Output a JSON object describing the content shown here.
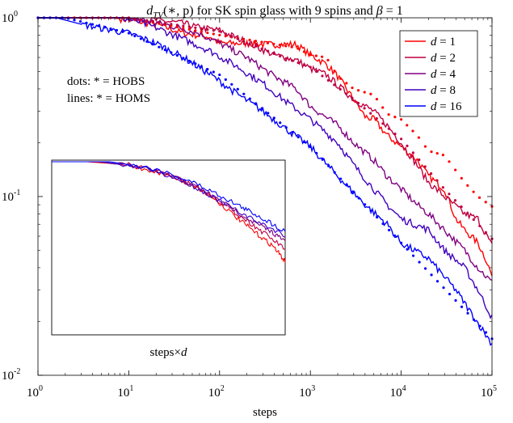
{
  "chart_data": {
    "type": "line",
    "title": "d_TV(*,p) for SK spin glass with 9 spins and β = 1",
    "title_parts": {
      "d": "d",
      "sub": "TV",
      "args": "(∗, p)",
      "rest": " for SK spin glass with 9 spins and ",
      "beta": "β",
      "eq": " = 1"
    },
    "xlabel": "steps",
    "ylabel": "",
    "xscale": "log",
    "yscale": "log",
    "xlim": [
      1,
      100000
    ],
    "ylim": [
      0.01,
      1
    ],
    "x_ticks": [
      {
        "base": "10",
        "exp": "0"
      },
      {
        "base": "10",
        "exp": "1"
      },
      {
        "base": "10",
        "exp": "2"
      },
      {
        "base": "10",
        "exp": "3"
      },
      {
        "base": "10",
        "exp": "4"
      },
      {
        "base": "10",
        "exp": "5"
      }
    ],
    "y_ticks": [
      {
        "base": "10",
        "exp": "-2"
      },
      {
        "base": "10",
        "exp": "-1"
      },
      {
        "base": "10",
        "exp": "0"
      }
    ],
    "annotation_lines": [
      "dots: * = HOBS",
      "lines: * = HOMS"
    ],
    "legend_position": "top-right",
    "legend": [
      {
        "label": "d = 1",
        "var": "d",
        "eq": " = 1",
        "color": "#ff0000"
      },
      {
        "label": "d = 2",
        "var": "d",
        "eq": " = 2",
        "color": "#bf0040"
      },
      {
        "label": "d = 4",
        "var": "d",
        "eq": " = 4",
        "color": "#800080"
      },
      {
        "label": "d = 8",
        "var": "d",
        "eq": " = 8",
        "color": "#4000bf"
      },
      {
        "label": "d = 16",
        "var": "d",
        "eq": " = 16",
        "color": "#0000ff"
      }
    ],
    "series": [
      {
        "name": "d = 1",
        "style": "line",
        "color": "#ff0000",
        "points": [
          [
            1,
            1
          ],
          [
            7,
            1
          ],
          [
            20,
            0.92
          ],
          [
            40,
            0.82
          ],
          [
            80,
            0.78
          ],
          [
            100,
            0.72
          ],
          [
            200,
            0.72
          ],
          [
            300,
            0.71
          ],
          [
            500,
            0.71
          ],
          [
            700,
            0.71
          ],
          [
            1000,
            0.62
          ],
          [
            1500,
            0.55
          ],
          [
            2000,
            0.47
          ],
          [
            3000,
            0.35
          ],
          [
            4000,
            0.28
          ],
          [
            5000,
            0.27
          ],
          [
            7000,
            0.22
          ],
          [
            10000,
            0.19
          ],
          [
            15000,
            0.16
          ],
          [
            20000,
            0.13
          ],
          [
            30000,
            0.11
          ],
          [
            40000,
            0.075
          ],
          [
            50000,
            0.065
          ],
          [
            70000,
            0.055
          ],
          [
            85000,
            0.045
          ],
          [
            100000,
            0.036
          ]
        ]
      },
      {
        "name": "d = 2",
        "style": "line",
        "color": "#bf0040",
        "points": [
          [
            1,
            1
          ],
          [
            10,
            1
          ],
          [
            20,
            0.97
          ],
          [
            40,
            0.93
          ],
          [
            60,
            0.88
          ],
          [
            100,
            0.85
          ],
          [
            200,
            0.73
          ],
          [
            400,
            0.62
          ],
          [
            700,
            0.58
          ],
          [
            1000,
            0.52
          ],
          [
            1500,
            0.48
          ],
          [
            2000,
            0.42
          ],
          [
            3000,
            0.35
          ],
          [
            5000,
            0.3
          ],
          [
            7000,
            0.25
          ],
          [
            10000,
            0.2
          ],
          [
            15000,
            0.15
          ],
          [
            20000,
            0.12
          ],
          [
            30000,
            0.1
          ],
          [
            50000,
            0.08
          ],
          [
            70000,
            0.075
          ],
          [
            100000,
            0.053
          ]
        ]
      },
      {
        "name": "d = 4",
        "style": "line",
        "color": "#800080",
        "points": [
          [
            1,
            1
          ],
          [
            10,
            1
          ],
          [
            15,
            0.97
          ],
          [
            30,
            0.9
          ],
          [
            60,
            0.82
          ],
          [
            100,
            0.72
          ],
          [
            200,
            0.6
          ],
          [
            400,
            0.47
          ],
          [
            700,
            0.4
          ],
          [
            1000,
            0.32
          ],
          [
            2000,
            0.25
          ],
          [
            3000,
            0.2
          ],
          [
            5000,
            0.16
          ],
          [
            7000,
            0.13
          ],
          [
            10000,
            0.11
          ],
          [
            15000,
            0.09
          ],
          [
            20000,
            0.08
          ],
          [
            30000,
            0.065
          ],
          [
            50000,
            0.05
          ],
          [
            70000,
            0.04
          ],
          [
            100000,
            0.033
          ]
        ]
      },
      {
        "name": "d = 8",
        "style": "line",
        "color": "#4000bf",
        "points": [
          [
            1,
            1
          ],
          [
            8,
            1
          ],
          [
            12,
            0.96
          ],
          [
            20,
            0.88
          ],
          [
            40,
            0.76
          ],
          [
            80,
            0.65
          ],
          [
            150,
            0.54
          ],
          [
            300,
            0.43
          ],
          [
            500,
            0.35
          ],
          [
            1000,
            0.27
          ],
          [
            2000,
            0.2
          ],
          [
            3000,
            0.15
          ],
          [
            5000,
            0.11
          ],
          [
            7000,
            0.09
          ],
          [
            10000,
            0.075
          ],
          [
            20000,
            0.065
          ],
          [
            30000,
            0.05
          ],
          [
            50000,
            0.04
          ],
          [
            70000,
            0.03
          ],
          [
            100000,
            0.021
          ]
        ]
      },
      {
        "name": "d = 16",
        "style": "line",
        "color": "#0000ff",
        "points": [
          [
            1,
            1
          ],
          [
            1.6,
            1
          ],
          [
            3,
            0.92
          ],
          [
            6,
            0.86
          ],
          [
            10,
            0.82
          ],
          [
            20,
            0.72
          ],
          [
            40,
            0.6
          ],
          [
            80,
            0.48
          ],
          [
            150,
            0.38
          ],
          [
            300,
            0.3
          ],
          [
            600,
            0.23
          ],
          [
            1000,
            0.19
          ],
          [
            2000,
            0.13
          ],
          [
            4000,
            0.09
          ],
          [
            7000,
            0.07
          ],
          [
            10000,
            0.055
          ],
          [
            20000,
            0.045
          ],
          [
            40000,
            0.03
          ],
          [
            60000,
            0.022
          ],
          [
            100000,
            0.015
          ]
        ]
      },
      {
        "name": "d = 1 (HOBS)",
        "style": "dots",
        "color": "#ff0000",
        "points": [
          [
            1,
            1
          ],
          [
            10,
            1
          ],
          [
            100,
            0.8
          ],
          [
            700,
            0.68
          ],
          [
            1000,
            0.62
          ],
          [
            1500,
            0.6
          ],
          [
            2000,
            0.47
          ],
          [
            3000,
            0.4
          ],
          [
            5000,
            0.37
          ],
          [
            7000,
            0.29
          ],
          [
            10000,
            0.27
          ],
          [
            15000,
            0.22
          ],
          [
            20000,
            0.18
          ],
          [
            30000,
            0.17
          ],
          [
            50000,
            0.12
          ],
          [
            70000,
            0.1
          ],
          [
            100000,
            0.088
          ]
        ]
      },
      {
        "name": "d = 2 (HOBS)",
        "style": "dots",
        "color": "#bf0040",
        "points": [
          [
            1,
            1
          ],
          [
            10,
            1
          ],
          [
            100,
            0.84
          ],
          [
            500,
            0.6
          ],
          [
            1000,
            0.53
          ],
          [
            3000,
            0.35
          ],
          [
            10000,
            0.21
          ],
          [
            30000,
            0.11
          ],
          [
            100000,
            0.058
          ]
        ]
      },
      {
        "name": "d = 16 (HOBS)",
        "style": "dots",
        "color": "#0000ff",
        "points": [
          [
            1,
            1
          ],
          [
            2,
            1
          ],
          [
            10,
            0.82
          ],
          [
            100,
            0.48
          ],
          [
            1000,
            0.19
          ],
          [
            10000,
            0.055
          ],
          [
            100000,
            0.016
          ]
        ]
      }
    ],
    "inset": {
      "xlabel_var": "steps",
      "xlabel_times": "×",
      "xlabel_d": "d",
      "series": [
        {
          "color": "#ff0000",
          "points": [
            [
              0.0,
              0.0
            ],
            [
              0.15,
              0.0
            ],
            [
              0.3,
              0.02
            ],
            [
              0.45,
              0.08
            ],
            [
              0.6,
              0.18
            ],
            [
              0.7,
              0.3
            ],
            [
              0.8,
              0.46
            ],
            [
              0.88,
              0.58
            ],
            [
              0.95,
              0.68
            ],
            [
              1.0,
              0.8
            ]
          ]
        },
        {
          "color": "#bf0040",
          "points": [
            [
              0.0,
              0.0
            ],
            [
              0.2,
              0.0
            ],
            [
              0.35,
              0.03
            ],
            [
              0.5,
              0.1
            ],
            [
              0.62,
              0.2
            ],
            [
              0.72,
              0.32
            ],
            [
              0.82,
              0.45
            ],
            [
              0.9,
              0.56
            ],
            [
              1.0,
              0.7
            ]
          ]
        },
        {
          "color": "#800080",
          "points": [
            [
              0.0,
              0.0
            ],
            [
              0.2,
              0.0
            ],
            [
              0.4,
              0.05
            ],
            [
              0.55,
              0.14
            ],
            [
              0.66,
              0.24
            ],
            [
              0.76,
              0.36
            ],
            [
              0.86,
              0.48
            ],
            [
              0.94,
              0.56
            ],
            [
              1.0,
              0.64
            ]
          ]
        },
        {
          "color": "#4000bf",
          "points": [
            [
              0.0,
              0.0
            ],
            [
              0.22,
              0.0
            ],
            [
              0.42,
              0.06
            ],
            [
              0.57,
              0.16
            ],
            [
              0.68,
              0.27
            ],
            [
              0.78,
              0.38
            ],
            [
              0.88,
              0.48
            ],
            [
              1.0,
              0.59
            ]
          ]
        },
        {
          "color": "#0000ff",
          "points": [
            [
              0.0,
              0.0
            ],
            [
              0.25,
              0.0
            ],
            [
              0.45,
              0.06
            ],
            [
              0.6,
              0.16
            ],
            [
              0.72,
              0.27
            ],
            [
              0.82,
              0.37
            ],
            [
              0.9,
              0.45
            ],
            [
              1.0,
              0.56
            ]
          ]
        }
      ]
    }
  }
}
